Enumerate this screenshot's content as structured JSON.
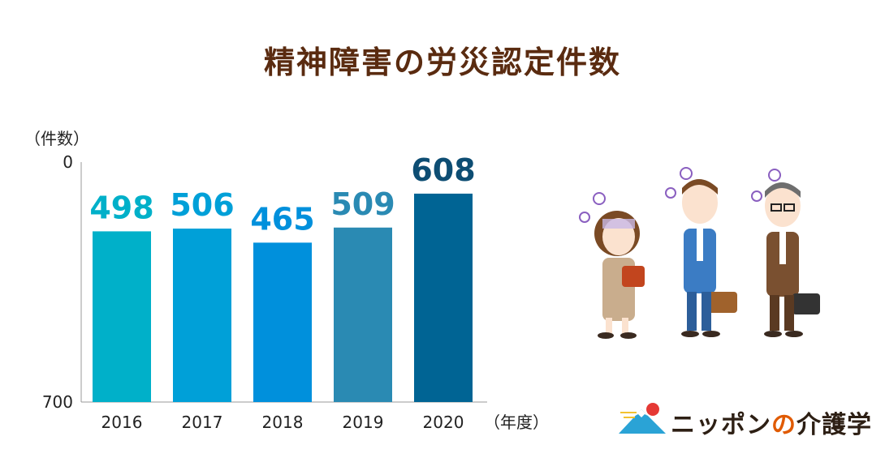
{
  "title": "精神障害の労災認定件数",
  "chart_data": {
    "type": "bar",
    "title": "精神障害の労災認定件数",
    "ylabel": "（件数）",
    "xlabel": "（年度）",
    "ylim": [
      0,
      700
    ],
    "yticks": [
      "0",
      "700"
    ],
    "categories": [
      "2016",
      "2017",
      "2018",
      "2019",
      "2020"
    ],
    "values": [
      498,
      506,
      465,
      509,
      608
    ],
    "colors": [
      "#00b0c9",
      "#00a0d8",
      "#0090dc",
      "#2a8ab3",
      "#006494"
    ],
    "label_colors": [
      "#00b0c9",
      "#00a0d8",
      "#0090dc",
      "#2a8ab3",
      "#0d4d73"
    ],
    "grid": false
  },
  "logo": {
    "brand_main": "ニッポン",
    "brand_no": "の",
    "brand_tail": "介護学"
  }
}
